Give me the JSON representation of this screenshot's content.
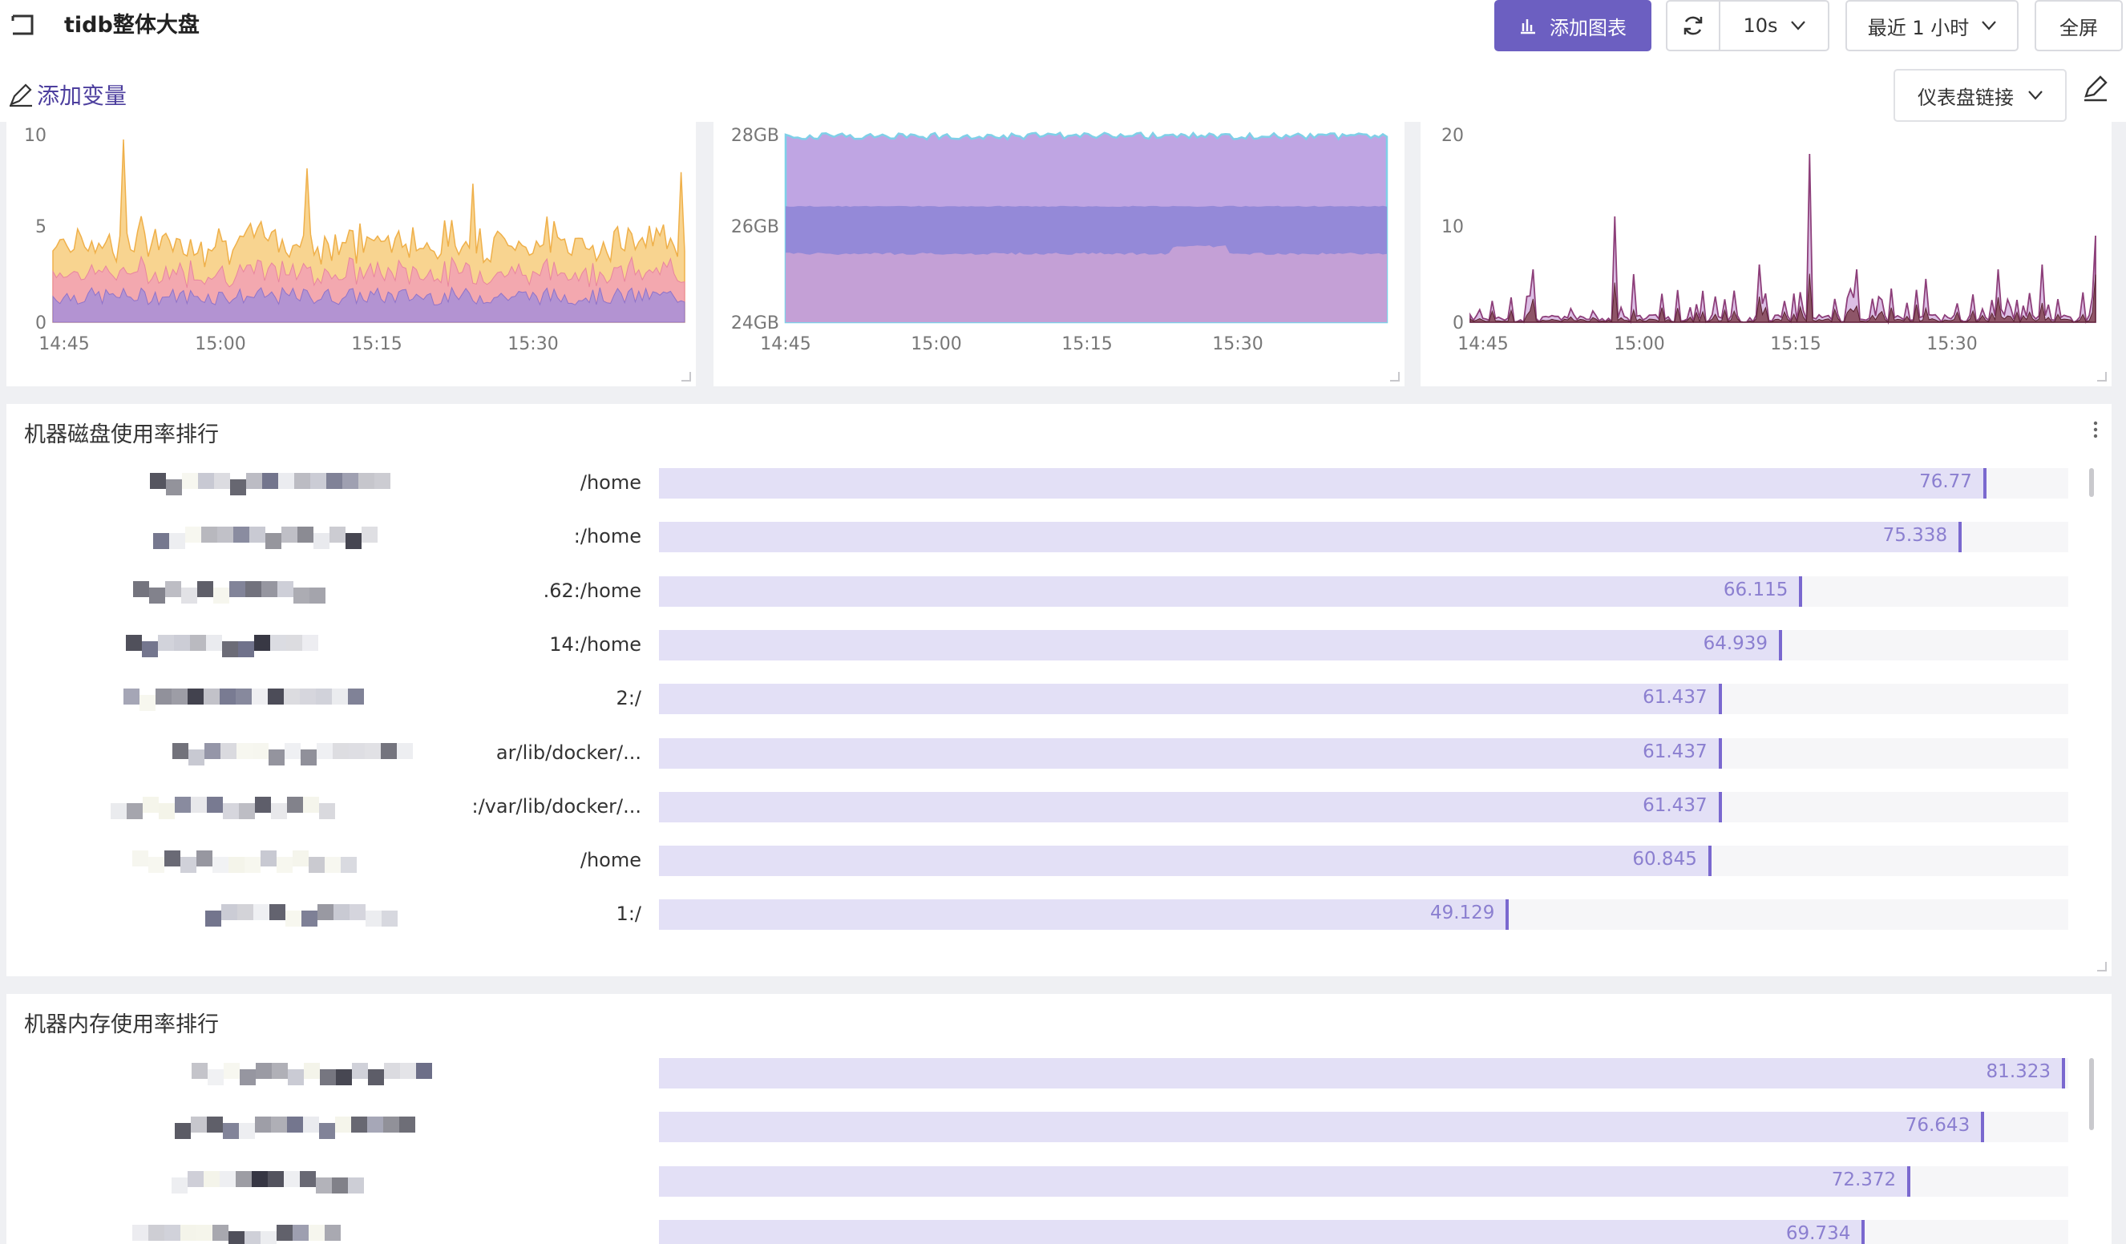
{
  "header": {
    "title": "tidb整体大盘",
    "add_chart_label": "添加图表",
    "refresh_interval": "10s",
    "time_range": "最近 1 小时",
    "fullscreen_label": "全屏"
  },
  "toolbar": {
    "add_variable_label": "添加变量",
    "dashboard_link_label": "仪表盘链接"
  },
  "charts": {
    "chart1": {
      "y_ticks": [
        "10",
        "5",
        "0"
      ],
      "x_ticks": [
        "14:45",
        "15:00",
        "15:15",
        "15:30"
      ]
    },
    "chart2": {
      "y_ticks": [
        "28GB",
        "26GB",
        "24GB"
      ],
      "x_ticks": [
        "14:45",
        "15:00",
        "15:15",
        "15:30"
      ]
    },
    "chart3": {
      "y_ticks": [
        "20",
        "10",
        "0"
      ],
      "x_ticks": [
        "14:45",
        "15:00",
        "15:15",
        "15:30"
      ]
    }
  },
  "chart_data": [
    {
      "type": "area",
      "x_ticks": [
        "14:45",
        "15:00",
        "15:15",
        "15:30"
      ],
      "ylim": [
        0,
        10
      ],
      "series": [
        {
          "color": "#f5c56b"
        },
        {
          "color": "#f2a0b5"
        },
        {
          "color": "#a78fd8"
        }
      ]
    },
    {
      "type": "area",
      "x_ticks": [
        "14:45",
        "15:00",
        "15:15",
        "15:30"
      ],
      "ylim": [
        24,
        28
      ],
      "series": [
        {
          "color": "#7fd0e8"
        },
        {
          "color": "#b89be0"
        },
        {
          "color": "#8f86d6"
        },
        {
          "color": "#c9a3d6"
        }
      ]
    },
    {
      "type": "area",
      "x_ticks": [
        "14:45",
        "15:00",
        "15:15",
        "15:30"
      ],
      "ylim": [
        0,
        20
      ],
      "series": [
        {
          "color": "#c08ad0"
        },
        {
          "color": "#7a3b48"
        }
      ]
    }
  ],
  "disk_panel": {
    "title": "机器磁盘使用率排行",
    "max": 100,
    "rows": [
      {
        "label": "/home",
        "value": "76.77",
        "pct": 76.77
      },
      {
        "label": ":/home",
        "value": "75.338",
        "pct": 75.338
      },
      {
        "label": ".62:/home",
        "value": "66.115",
        "pct": 66.115
      },
      {
        "label": "14:/home",
        "value": "64.939",
        "pct": 64.939
      },
      {
        "label": "2:/",
        "value": "61.437",
        "pct": 61.437
      },
      {
        "label": "ar/lib/docker/...",
        "value": "61.437",
        "pct": 61.437
      },
      {
        "label": ":/var/lib/docker/...",
        "value": "61.437",
        "pct": 61.437
      },
      {
        "label": "/home",
        "value": "60.845",
        "pct": 60.845
      },
      {
        "label": "1:/",
        "value": "49.129",
        "pct": 49.129
      }
    ]
  },
  "memory_panel": {
    "title": "机器内存使用率排行",
    "rows": [
      {
        "label": "",
        "value": "81.323",
        "pct": 81.323
      },
      {
        "label": "",
        "value": "76.643",
        "pct": 76.643
      },
      {
        "label": "",
        "value": "72.372",
        "pct": 72.372
      },
      {
        "label": "",
        "value": "69.734",
        "pct": 69.734
      }
    ]
  },
  "icons": {
    "back": "back-icon",
    "refresh": "refresh-icon",
    "edit": "pencil-icon",
    "more": "more-vertical-icon",
    "chart": "chart-icon",
    "chevron": "chevron-down-icon"
  },
  "colors": {
    "primary": "#6c5fc1",
    "bar_fill": "#e3e0f6",
    "bar_cap": "#7a68cf",
    "bar_value": "#8b7fd0"
  }
}
